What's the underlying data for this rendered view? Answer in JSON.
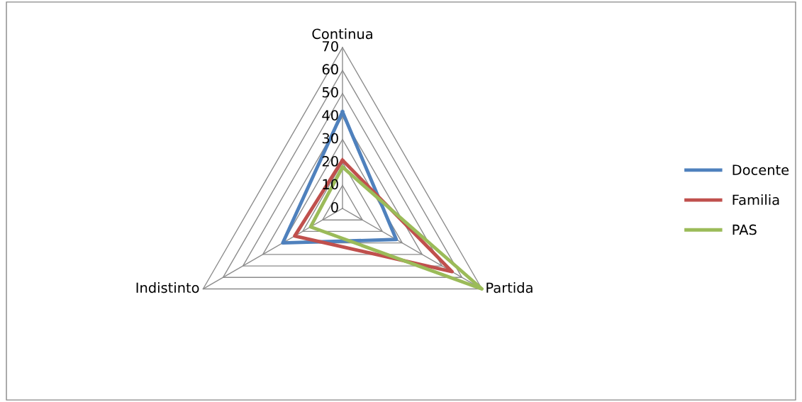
{
  "chart_data": {
    "type": "radar",
    "categories": [
      "Continua",
      "Partida",
      "Indistinto"
    ],
    "series": [
      {
        "name": "Docente",
        "color": "#4f81bd",
        "values": [
          42,
          27,
          30
        ]
      },
      {
        "name": "Familia",
        "color": "#c0504d",
        "values": [
          21,
          55,
          24
        ]
      },
      {
        "name": "PAS",
        "color": "#9bbb59",
        "values": [
          18,
          70,
          16
        ]
      }
    ],
    "ylim": [
      0,
      70
    ],
    "yticks": [
      0,
      10,
      20,
      30,
      40,
      50,
      60,
      70
    ],
    "grid": true,
    "legend": "right",
    "marker": "none"
  }
}
